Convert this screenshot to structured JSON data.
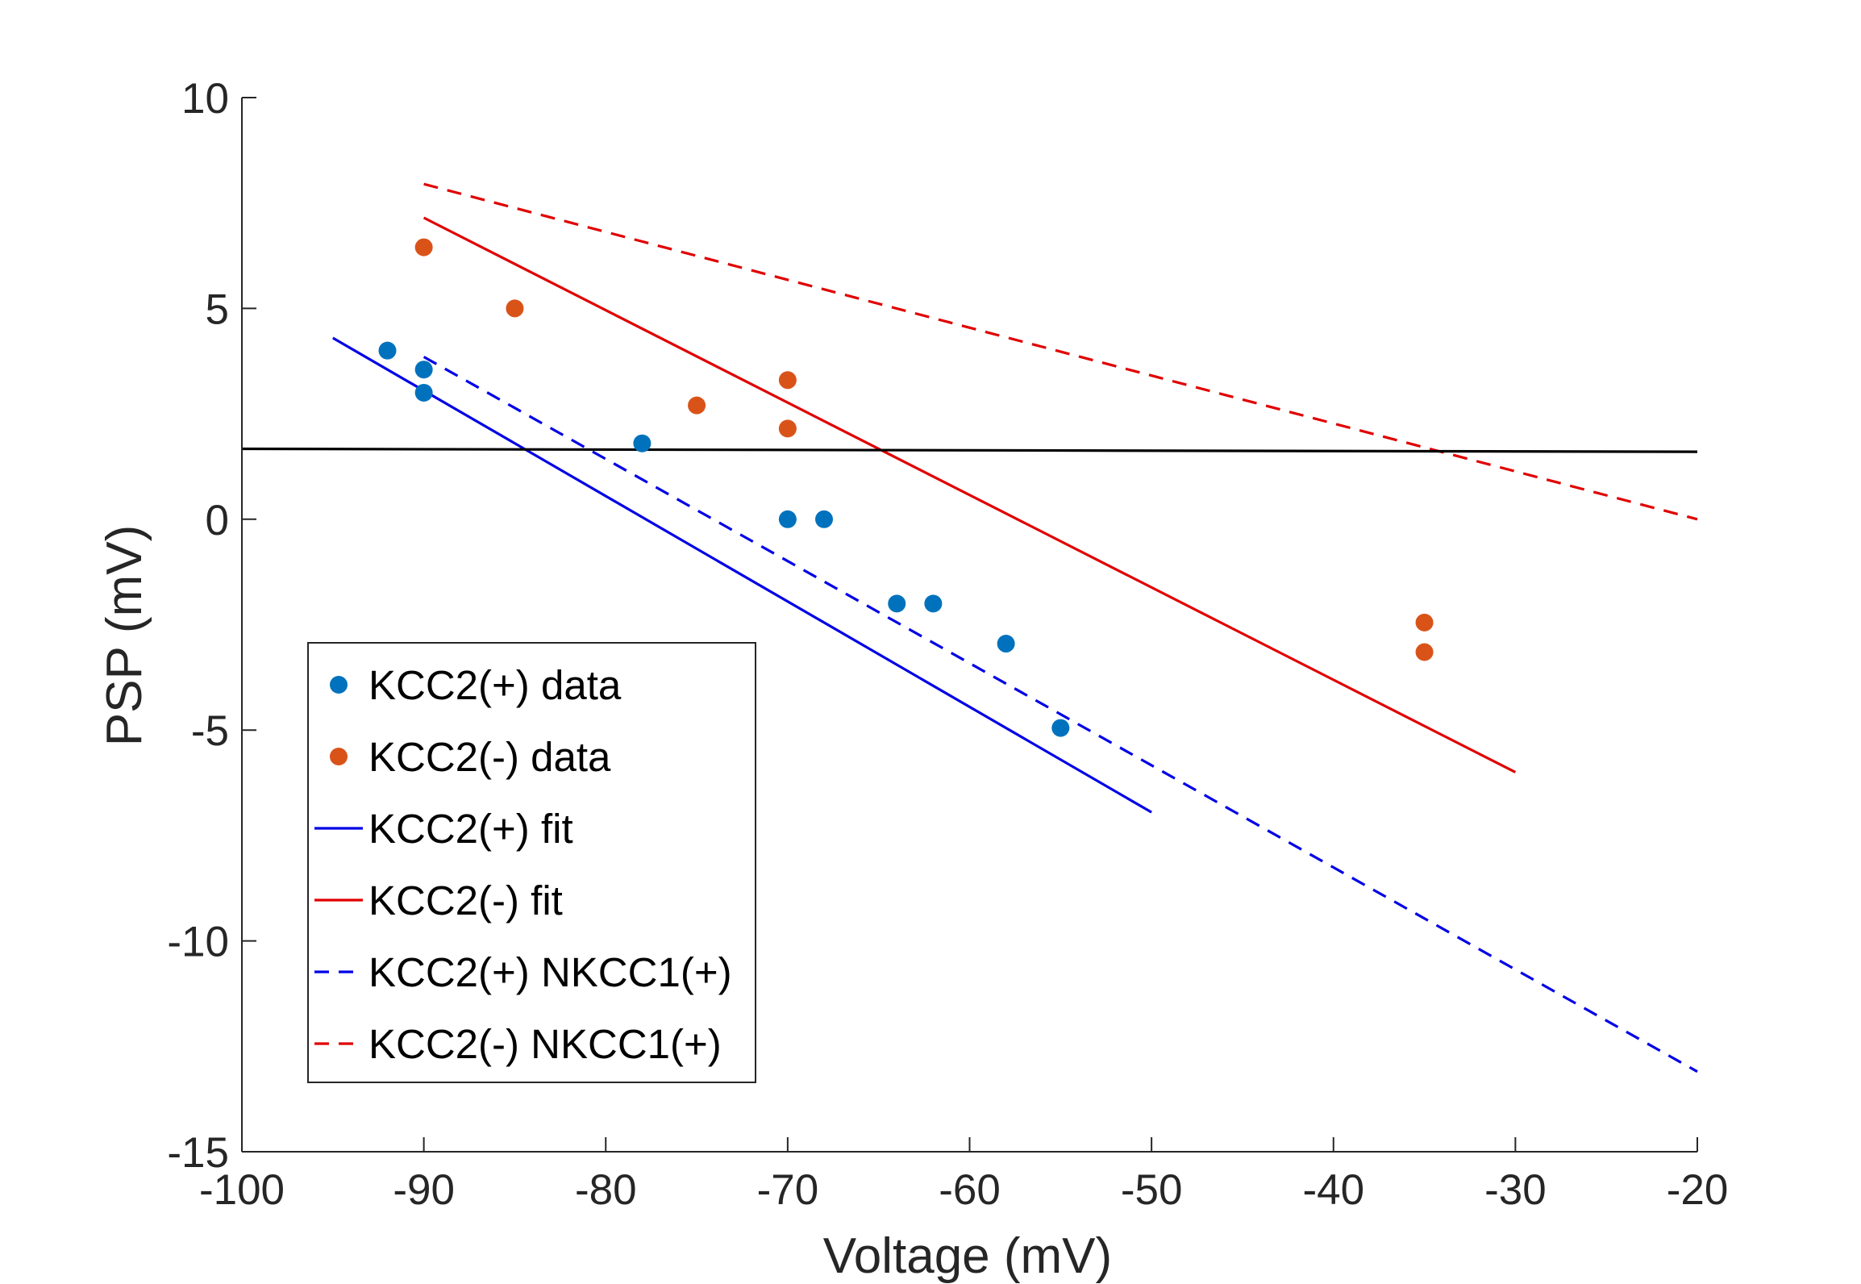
{
  "chart_data": {
    "type": "scatter",
    "title": "",
    "xlabel": "Voltage (mV)",
    "ylabel": "PSP (mV)",
    "xlim": [
      -100,
      -20
    ],
    "ylim": [
      -15,
      10
    ],
    "xticks": [
      -100,
      -90,
      -80,
      -70,
      -60,
      -50,
      -40,
      -30,
      -20
    ],
    "yticks": [
      -15,
      -10,
      -5,
      0,
      5,
      10
    ],
    "xtick_labels": [
      "-100",
      "-90",
      "-80",
      "-70",
      "-60",
      "-50",
      "-40",
      "-30",
      "-20"
    ],
    "ytick_labels": [
      "-15",
      "-10",
      "-5",
      "0",
      "5",
      "10"
    ],
    "grid": false,
    "legend_position": "lower-left",
    "series": [
      {
        "name": "KCC2(+) data",
        "kind": "scatter",
        "color": "#0072BD",
        "points": [
          [
            -92,
            4.0
          ],
          [
            -90,
            3.55
          ],
          [
            -90,
            3.0
          ],
          [
            -78,
            1.8
          ],
          [
            -70,
            0.0
          ],
          [
            -68,
            0.0
          ],
          [
            -64,
            -2.0
          ],
          [
            -62,
            -2.0
          ],
          [
            -58,
            -2.95
          ],
          [
            -55,
            -4.95
          ]
        ]
      },
      {
        "name": "KCC2(-) data",
        "kind": "scatter",
        "color": "#D95319",
        "points": [
          [
            -90,
            6.45
          ],
          [
            -85,
            5.0
          ],
          [
            -75,
            2.7
          ],
          [
            -70,
            3.3
          ],
          [
            -70,
            2.15
          ],
          [
            -35,
            -2.45
          ],
          [
            -35,
            -3.15
          ]
        ]
      },
      {
        "name": "KCC2(+) fit",
        "kind": "line",
        "style": "solid",
        "color": "#0000E6",
        "points": [
          [
            -95,
            4.3
          ],
          [
            -50,
            -6.95
          ]
        ]
      },
      {
        "name": "KCC2(-) fit",
        "kind": "line",
        "style": "solid",
        "color": "#E00000",
        "points": [
          [
            -90,
            7.15
          ],
          [
            -30,
            -6.0
          ]
        ]
      },
      {
        "name": "KCC2(+) NKCC1(+)",
        "kind": "line",
        "style": "dashed",
        "color": "#0000E6",
        "points": [
          [
            -90,
            3.85
          ],
          [
            -20,
            -13.1
          ]
        ]
      },
      {
        "name": "KCC2(-) NKCC1(+)",
        "kind": "line",
        "style": "dashed",
        "color": "#E00000",
        "points": [
          [
            -90,
            7.95
          ],
          [
            -20,
            0.0
          ]
        ]
      },
      {
        "kind": "line",
        "style": "solid",
        "color": "#000000",
        "points": [
          [
            -100,
            1.67
          ],
          [
            -20,
            1.6
          ]
        ]
      }
    ]
  }
}
